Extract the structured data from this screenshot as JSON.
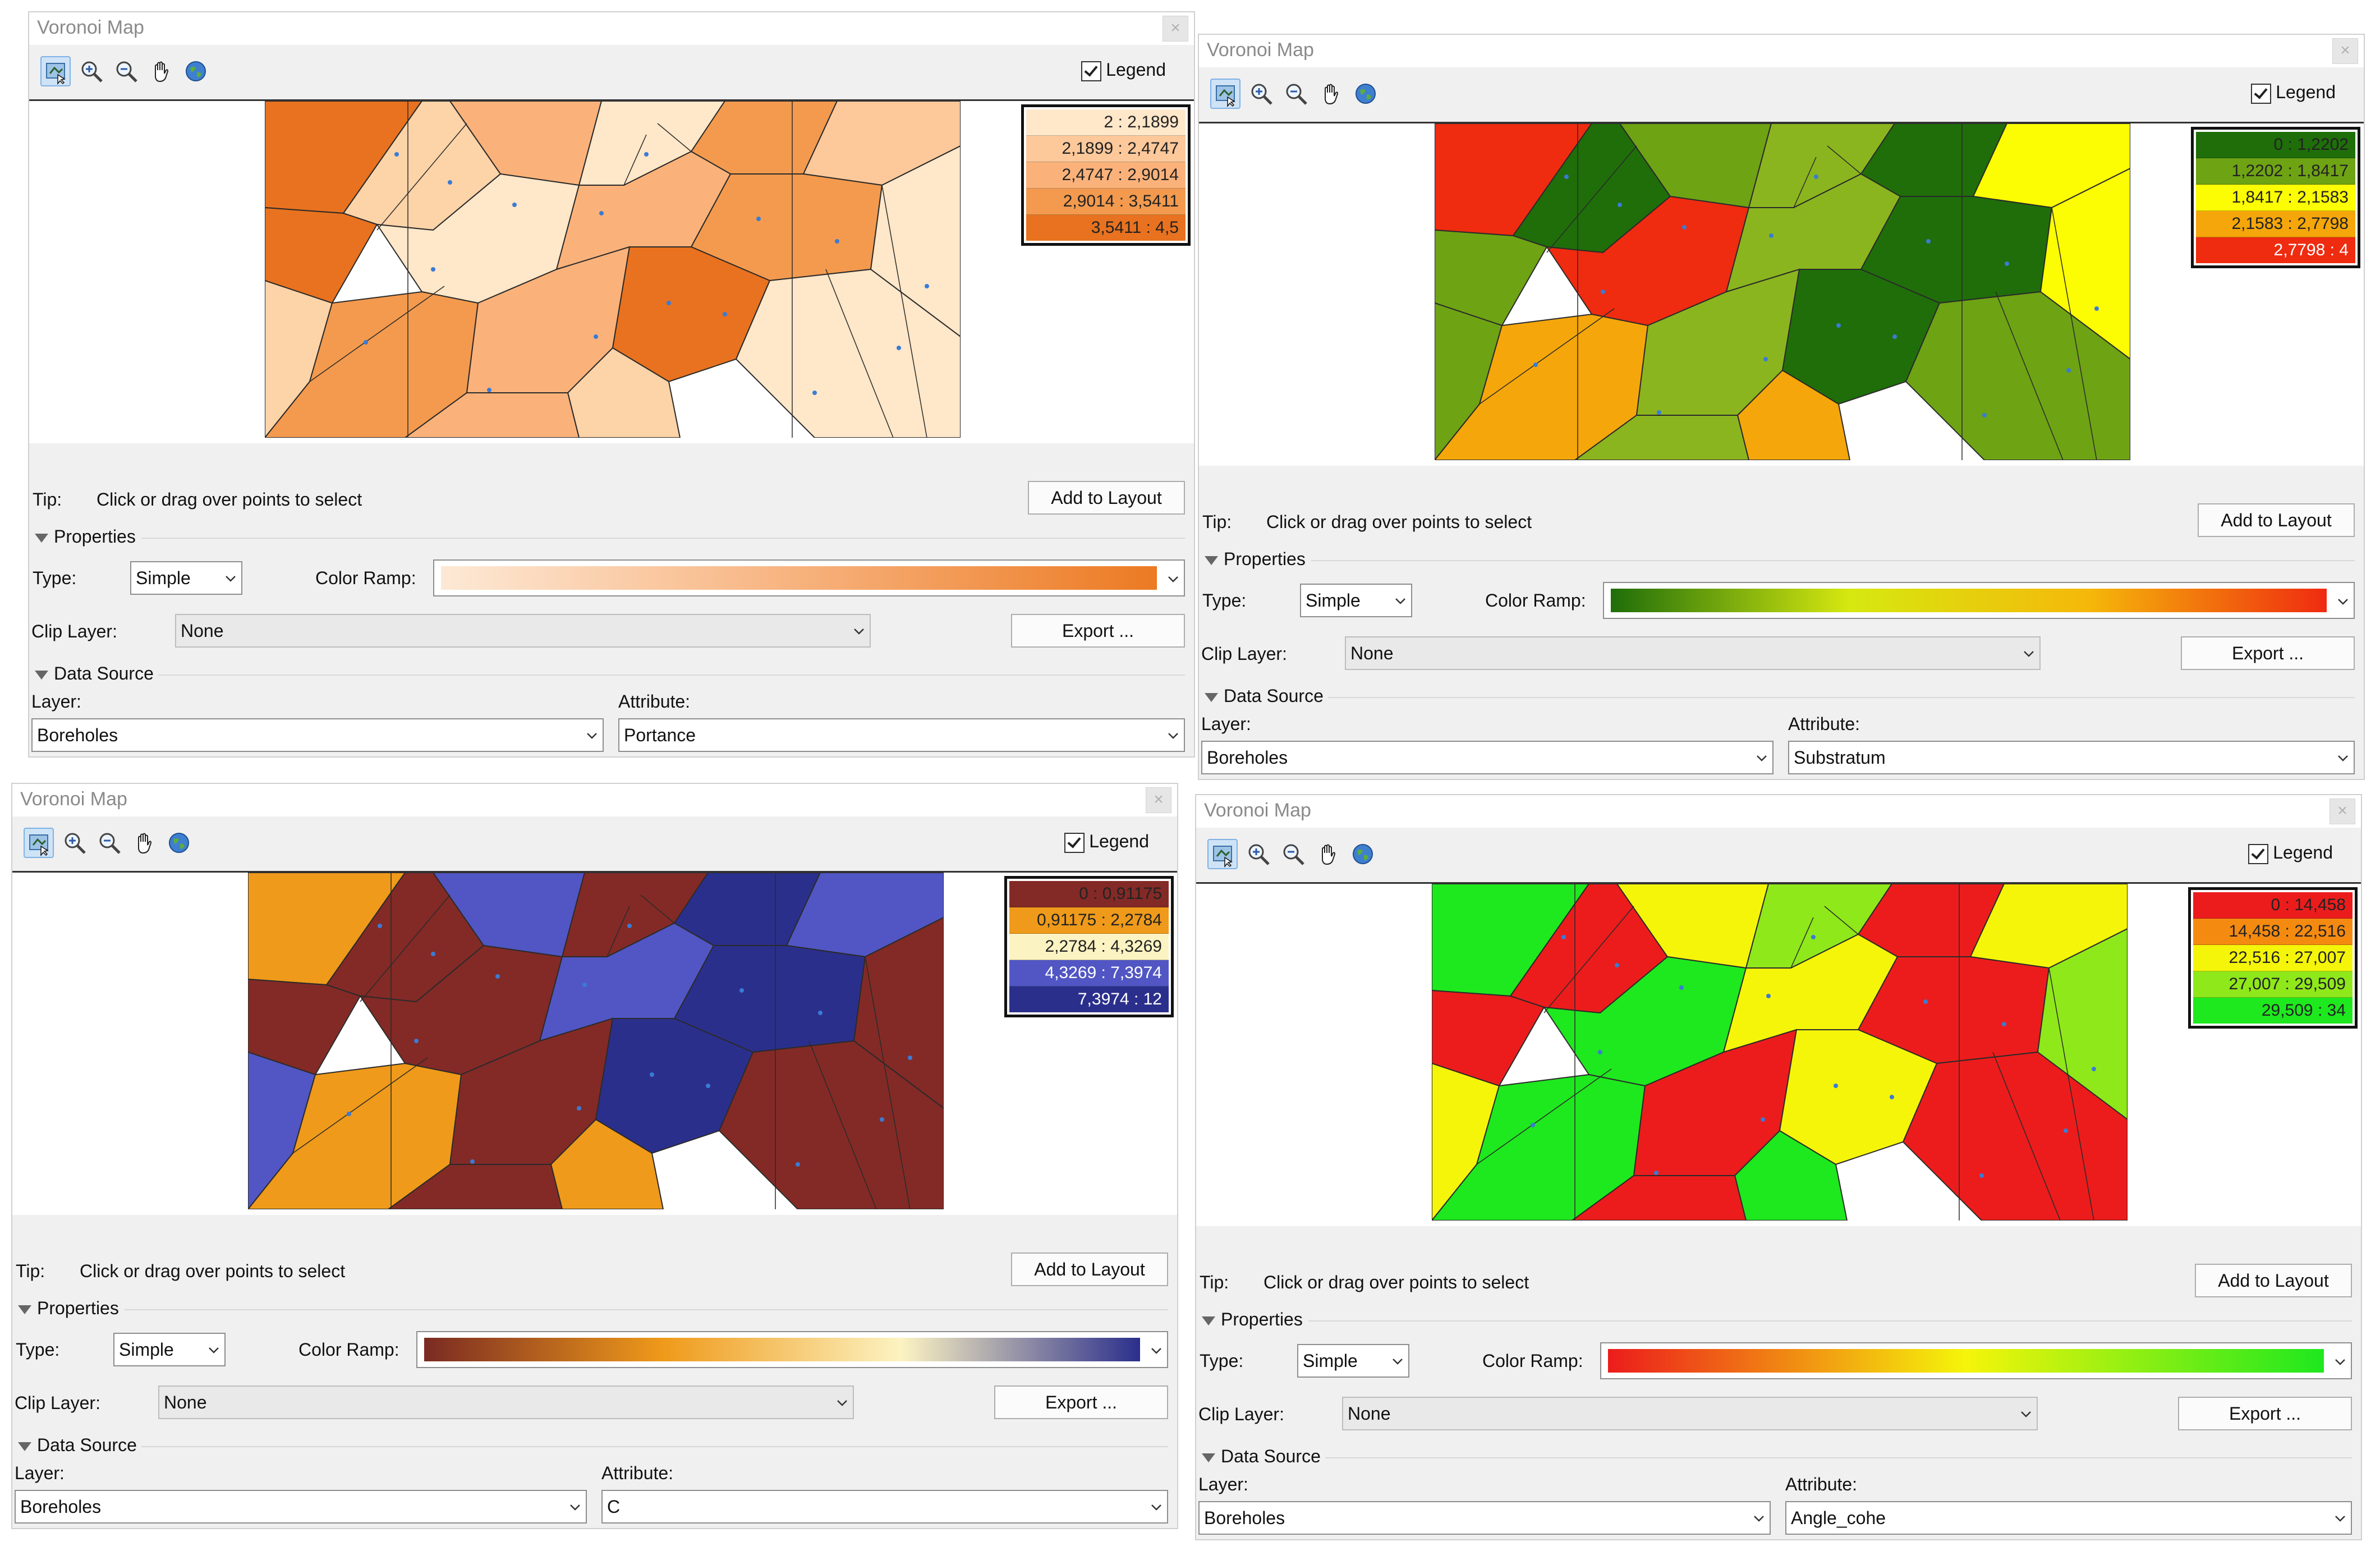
{
  "panels": [
    {
      "title": "Voronoi Map",
      "legend_label": "Legend",
      "legend_entries": [
        "2 : 2,1899",
        "2,1899 : 2,4747",
        "2,4747 : 2,9014",
        "2,9014 : 3,5411",
        "3,5411 : 4,5"
      ],
      "legend_colors": [
        "#ffe7c9",
        "#fdc89a",
        "#fbb27a",
        "#f39a4e",
        "#e8721f"
      ],
      "cell_colors": [
        "#e8721f",
        "#fdd3a8",
        "#fbb27a",
        "#ffe7c9",
        "#f39a4e",
        "#fdc89a",
        "#e8721f",
        "#ffe7c9",
        "#fbb27a",
        "#f39a4e",
        "#ffe7c9",
        "#fdd3a8",
        "#f39a4e",
        "#fbb27a",
        "#e8721f",
        "#ffe7c9",
        "#fdd3a8",
        "#fbb27a"
      ],
      "tip_label": "Tip:",
      "tip_text": "Click or drag over points to select",
      "add_layout": "Add to Layout",
      "properties": "Properties",
      "type_label": "Type:",
      "type_value": "Simple",
      "ramp_label": "Color Ramp:",
      "ramp_colors": [
        "#fde9d6",
        "#f7b27d",
        "#ec7a22"
      ],
      "clip_label": "Clip Layer:",
      "clip_value": "None",
      "export": "Export ...",
      "data_source": "Data Source",
      "layer_label": "Layer:",
      "layer_value": "Boreholes",
      "attr_label": "Attribute:",
      "attr_value": "Portance"
    },
    {
      "title": "Voronoi Map",
      "legend_label": "Legend",
      "legend_entries": [
        "0 : 1,2202",
        "1,2202 : 1,8417",
        "1,8417 : 2,1583",
        "2,1583 : 2,7798",
        "2,7798 : 4"
      ],
      "legend_colors": [
        "#1f6e0a",
        "#6ea314",
        "#fcfc03",
        "#f5a60a",
        "#ef2b10"
      ],
      "cell_colors": [
        "#ef2b10",
        "#1f6e0a",
        "#6ea314",
        "#8bb51e",
        "#1f6e0a",
        "#fcfc03",
        "#6ea314",
        "#ef2b10",
        "#8bb51e",
        "#1f6e0a",
        "#fcfc03",
        "#6ea314",
        "#f5a60a",
        "#8bb51e",
        "#1f6e0a",
        "#6ea314",
        "#f5a60a",
        "#8bb51e"
      ],
      "tip_label": "Tip:",
      "tip_text": "Click or drag over points to select",
      "add_layout": "Add to Layout",
      "properties": "Properties",
      "type_label": "Type:",
      "type_value": "Simple",
      "ramp_label": "Color Ramp:",
      "ramp_colors": [
        "#1f6e0a",
        "#d6e810",
        "#f5b80a",
        "#ef2b10"
      ],
      "clip_label": "Clip Layer:",
      "clip_value": "None",
      "export": "Export ...",
      "data_source": "Data Source",
      "layer_label": "Layer:",
      "layer_value": "Boreholes",
      "attr_label": "Attribute:",
      "attr_value": "Substratum"
    },
    {
      "title": "Voronoi Map",
      "legend_label": "Legend",
      "legend_entries": [
        "0 : 0,91175",
        "0,91175 : 2,2784",
        "2,2784 : 4,3269",
        "4,3269 : 7,3974",
        "7,3974 : 12"
      ],
      "legend_colors": [
        "#832a26",
        "#ef9a1a",
        "#fcf3c2",
        "#5156c4",
        "#2b2f8c"
      ],
      "cell_colors": [
        "#ef9a1a",
        "#832a26",
        "#5156c4",
        "#832a26",
        "#2b2f8c",
        "#5156c4",
        "#832a26",
        "#832a26",
        "#5156c4",
        "#2b2f8c",
        "#832a26",
        "#5156c4",
        "#ef9a1a",
        "#832a26",
        "#2b2f8c",
        "#832a26",
        "#ef9a1a",
        "#832a26"
      ],
      "tip_label": "Tip:",
      "tip_text": "Click or drag over points to select",
      "add_layout": "Add to Layout",
      "properties": "Properties",
      "type_label": "Type:",
      "type_value": "Simple",
      "ramp_label": "Color Ramp:",
      "ramp_colors": [
        "#7a2a22",
        "#ef9a1a",
        "#fcf3c2",
        "#2b2f8c"
      ],
      "clip_label": "Clip Layer:",
      "clip_value": "None",
      "export": "Export ...",
      "data_source": "Data Source",
      "layer_label": "Layer:",
      "layer_value": "Boreholes",
      "attr_label": "Attribute:",
      "attr_value": "C"
    },
    {
      "title": "Voronoi Map",
      "legend_label": "Legend",
      "legend_entries": [
        "0 : 14,458",
        "14,458 : 22,516",
        "22,516 : 27,007",
        "27,007 : 29,509",
        "29,509 : 34"
      ],
      "legend_colors": [
        "#ec1c1c",
        "#f58a10",
        "#f5f50a",
        "#8fe81a",
        "#1ee81e"
      ],
      "cell_colors": [
        "#1ee81e",
        "#ec1c1c",
        "#f5f50a",
        "#8fe81a",
        "#ec1c1c",
        "#f5f50a",
        "#ec1c1c",
        "#1ee81e",
        "#f5f50a",
        "#ec1c1c",
        "#8fe81a",
        "#f5f50a",
        "#1ee81e",
        "#ec1c1c",
        "#f5f50a",
        "#ec1c1c",
        "#1ee81e",
        "#ec1c1c"
      ],
      "tip_label": "Tip:",
      "tip_text": "Click or drag over points to select",
      "add_layout": "Add to Layout",
      "properties": "Properties",
      "type_label": "Type:",
      "type_value": "Simple",
      "ramp_label": "Color Ramp:",
      "ramp_colors": [
        "#ec1c1c",
        "#f5f50a",
        "#1ee81e"
      ],
      "clip_label": "Clip Layer:",
      "clip_value": "None",
      "export": "Export ...",
      "data_source": "Data Source",
      "layer_label": "Layer:",
      "layer_value": "Boreholes",
      "attr_label": "Attribute:",
      "attr_value": "Angle_cohe"
    }
  ],
  "toolbar_icons": [
    "identify-icon",
    "zoom-in-icon",
    "zoom-out-icon",
    "pan-icon",
    "full-extent-icon"
  ]
}
